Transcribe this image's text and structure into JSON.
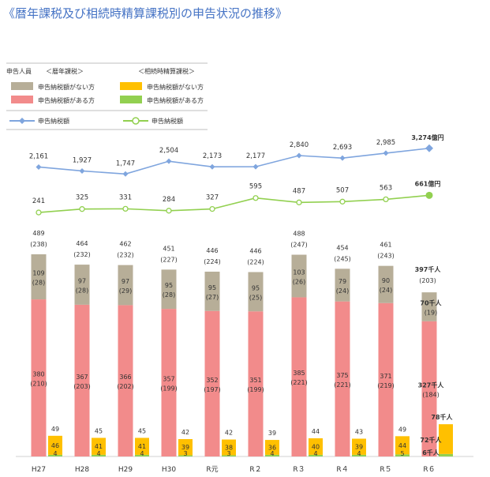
{
  "page": {
    "title": "《暦年課税及び相続時精算課税別の申告状況の推移》"
  },
  "legend": {
    "header_people": "申告人員",
    "header_calendar": "＜暦年課税＞",
    "header_settlement": "＜相続時精算課税＞",
    "cal_no_tax": "申告納税額がない方",
    "cal_with_tax": "申告納税額がある方",
    "set_no_tax": "申告納税額がない方",
    "set_with_tax": "申告納税額がある方",
    "cal_amount": "申告納税額",
    "set_amount": "申告納税額"
  },
  "colors": {
    "title": "#4472c4",
    "cal_no_tax": "#b7ae98",
    "cal_with_tax": "#f28b8b",
    "set_no_tax": "#ffc000",
    "set_with_tax": "#92d050",
    "cal_line": "#7fa5de",
    "set_line": "#92d050"
  },
  "chart_data": {
    "type": "bar",
    "categories": [
      "H27",
      "H28",
      "H29",
      "H30",
      "R元",
      "R２",
      "R３",
      "R４",
      "R５",
      "R６"
    ],
    "series": [
      {
        "name": "申告納税額がない方",
        "group": "暦年課税",
        "values": [
          109,
          97,
          97,
          95,
          95,
          95,
          103,
          79,
          90,
          70
        ],
        "labels": [
          "109",
          "97",
          "97",
          "95",
          "95",
          "95",
          "103",
          "79",
          "90",
          "70千人"
        ],
        "paren": [
          "(28)",
          "(28)",
          "(29)",
          "(28)",
          "(27)",
          "(25)",
          "(26)",
          "(24)",
          "(24)",
          "(19)"
        ]
      },
      {
        "name": "申告納税額がある方",
        "group": "暦年課税",
        "values": [
          380,
          367,
          366,
          357,
          352,
          351,
          385,
          375,
          371,
          327
        ],
        "labels": [
          "380",
          "367",
          "366",
          "357",
          "352",
          "351",
          "385",
          "375",
          "371",
          "327千人"
        ],
        "paren": [
          "(210)",
          "(203)",
          "(202)",
          "(199)",
          "(197)",
          "(199)",
          "(221)",
          "(221)",
          "(219)",
          "(184)"
        ]
      },
      {
        "name": "申告納税額がない方",
        "group": "相続時精算課税",
        "values": [
          46,
          41,
          41,
          39,
          38,
          36,
          40,
          39,
          44,
          72
        ],
        "labels": [
          "46",
          "41",
          "41",
          "39",
          "38",
          "36",
          "40",
          "39",
          "44",
          "72千人"
        ]
      },
      {
        "name": "申告納税額がある方",
        "group": "相続時精算課税",
        "values": [
          4,
          4,
          4,
          3,
          3,
          4,
          4,
          4,
          5,
          6
        ],
        "labels": [
          "4",
          "4",
          "4",
          "3",
          "3",
          "4",
          "4",
          "4",
          "5",
          "6千人"
        ]
      }
    ],
    "calendar_totals": [
      489,
      464,
      462,
      451,
      446,
      446,
      488,
      454,
      461,
      397
    ],
    "calendar_total_labels": [
      "489",
      "464",
      "462",
      "451",
      "446",
      "446",
      "488",
      "454",
      "461",
      "397千人"
    ],
    "calendar_total_paren": [
      "(238)",
      "(232)",
      "(232)",
      "(227)",
      "(224)",
      "(224)",
      "(247)",
      "(245)",
      "(243)",
      "(203)"
    ],
    "settlement_totals": [
      49,
      45,
      45,
      42,
      42,
      39,
      44,
      43,
      49,
      78
    ],
    "settlement_total_labels": [
      "49",
      "45",
      "45",
      "42",
      "42",
      "39",
      "44",
      "43",
      "49",
      "78千人"
    ],
    "lines": [
      {
        "name": "申告納税額",
        "group": "暦年課税",
        "values": [
          2161,
          1927,
          1747,
          2504,
          2173,
          2177,
          2840,
          2693,
          2985,
          3274
        ],
        "labels": [
          "2,161",
          "1,927",
          "1,747",
          "2,504",
          "2,173",
          "2,177",
          "2,840",
          "2,693",
          "2,985",
          "3,274億円"
        ]
      },
      {
        "name": "申告納税額",
        "group": "相続時精算課税",
        "values": [
          241,
          325,
          331,
          284,
          327,
          595,
          487,
          507,
          563,
          661
        ],
        "labels": [
          "241",
          "325",
          "331",
          "284",
          "327",
          "595",
          "487",
          "507",
          "563",
          "661億円"
        ]
      }
    ]
  }
}
